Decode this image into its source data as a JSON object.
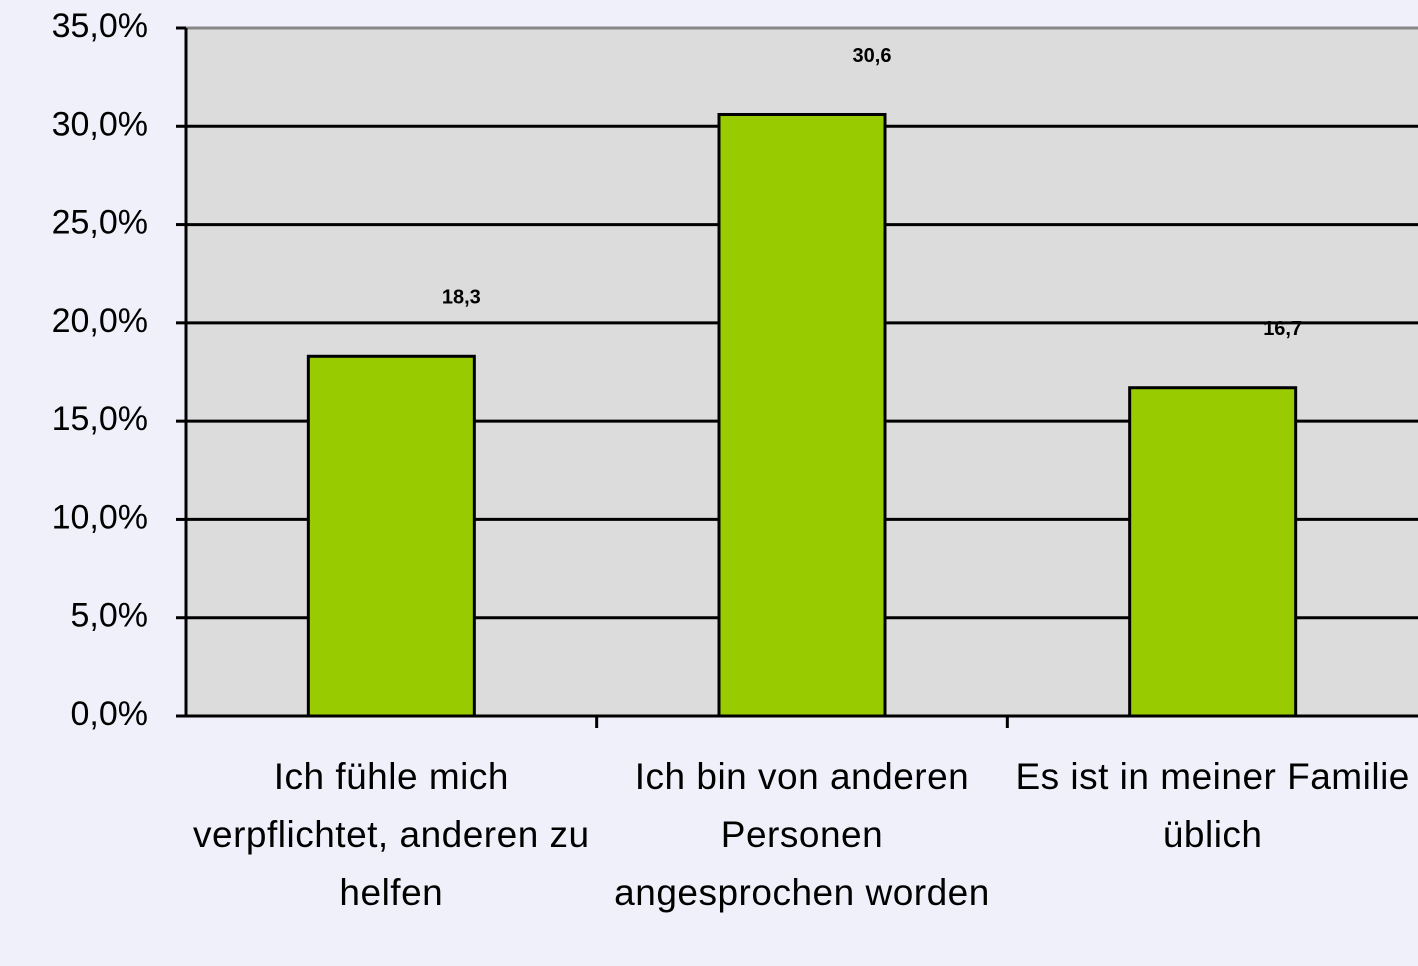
{
  "chart_data": {
    "type": "bar",
    "categories": [
      "Ich fühle mich verpflichtet, anderen zu helfen",
      "Ich bin von anderen Personen angesprochen worden",
      "Es ist in meiner Familie üblich"
    ],
    "values": [
      18.3,
      30.6,
      16.7
    ],
    "value_labels": [
      "18,3",
      "30,6",
      "16,7"
    ],
    "color": "#99cc00",
    "ylim": [
      0,
      35
    ],
    "yticks": [
      {
        "value": 0,
        "label": "0,0%"
      },
      {
        "value": 5,
        "label": "5,0%"
      },
      {
        "value": 10,
        "label": "10,0%"
      },
      {
        "value": 15,
        "label": "15,0%"
      },
      {
        "value": 20,
        "label": "20,0%"
      },
      {
        "value": 25,
        "label": "25,0%"
      },
      {
        "value": 30,
        "label": "30,0%"
      },
      {
        "value": 35,
        "label": "35,0%"
      }
    ],
    "grid": true
  }
}
